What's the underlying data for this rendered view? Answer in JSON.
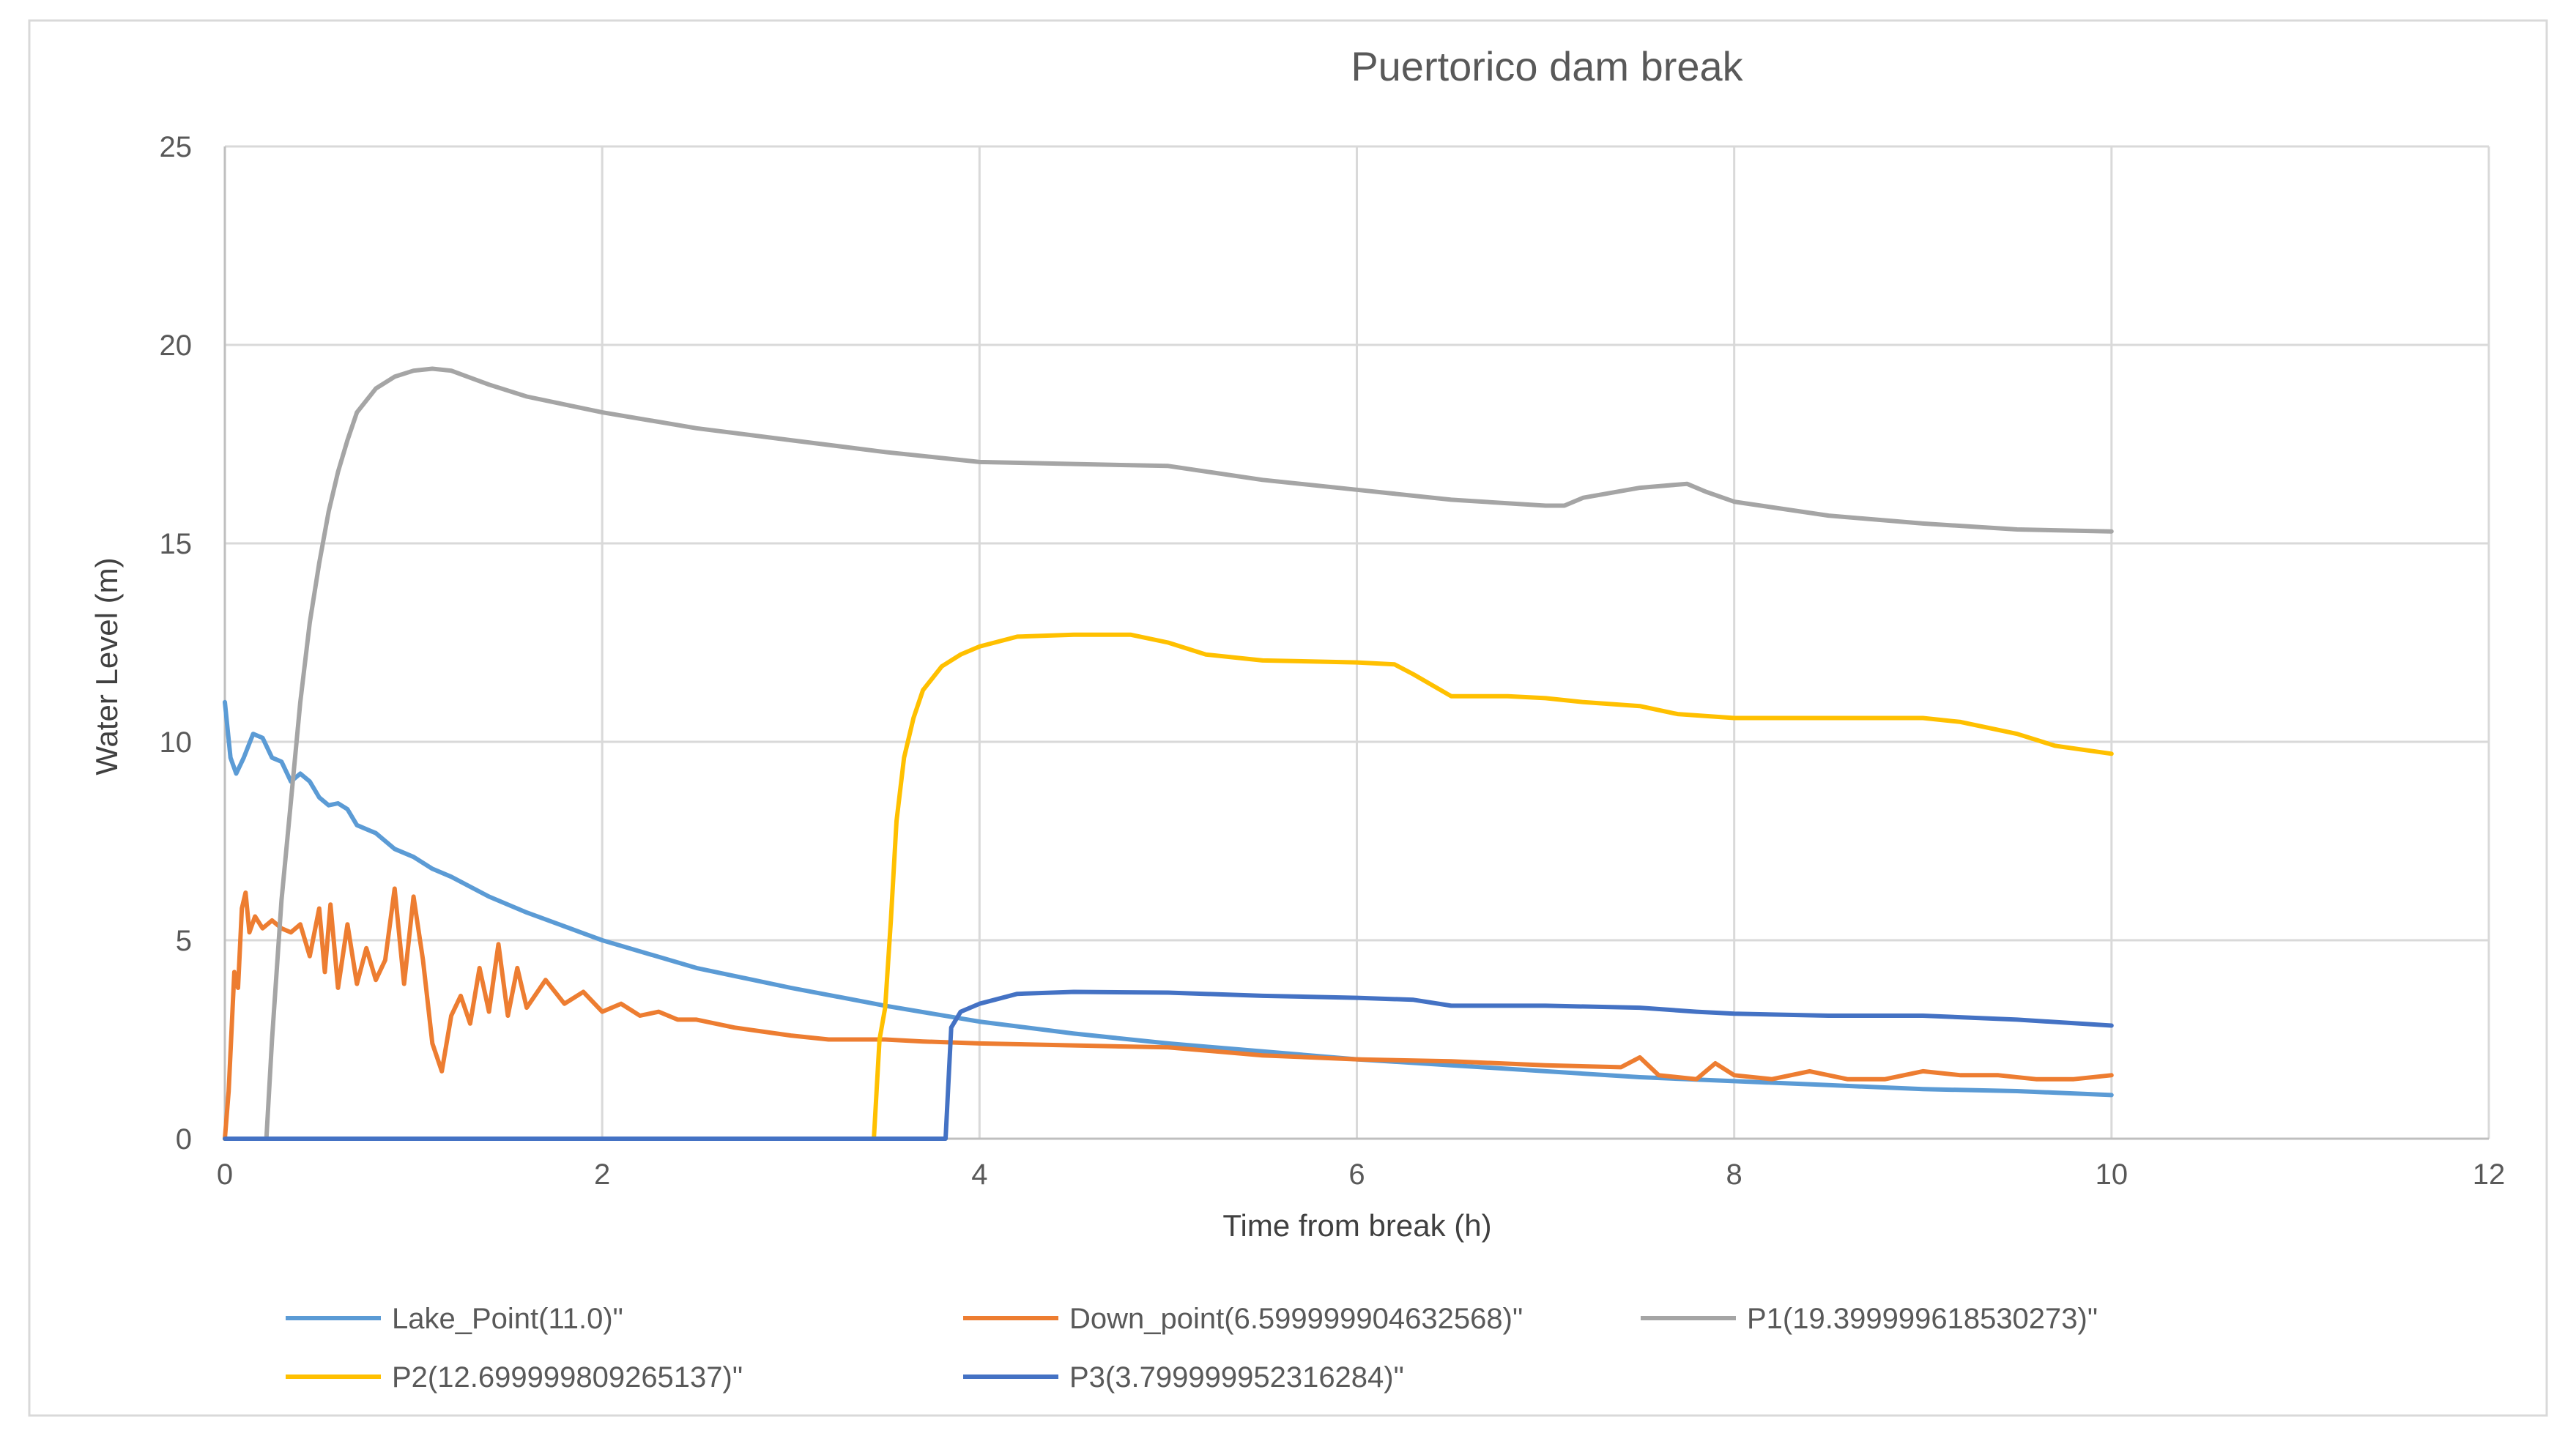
{
  "chart_data": {
    "type": "line",
    "title": "Puertorico dam break",
    "xlabel": "Time from break (h)",
    "ylabel": "Water Level (m)",
    "xlim": [
      0,
      12
    ],
    "ylim": [
      0,
      25
    ],
    "x_ticks": [
      "0",
      "2",
      "4",
      "6",
      "8",
      "10",
      "12"
    ],
    "y_ticks": [
      "0",
      "5",
      "10",
      "15",
      "20",
      "25"
    ],
    "grid": true,
    "legend_position": "bottom",
    "series": [
      {
        "name": "Lake_Point(11.0)\"",
        "color": "#5B9BD5",
        "points": [
          [
            0,
            11.0
          ],
          [
            0.03,
            9.6
          ],
          [
            0.06,
            9.2
          ],
          [
            0.1,
            9.6
          ],
          [
            0.15,
            10.2
          ],
          [
            0.2,
            10.1
          ],
          [
            0.25,
            9.6
          ],
          [
            0.3,
            9.5
          ],
          [
            0.35,
            9.0
          ],
          [
            0.4,
            9.2
          ],
          [
            0.45,
            9.0
          ],
          [
            0.5,
            8.6
          ],
          [
            0.55,
            8.4
          ],
          [
            0.6,
            8.45
          ],
          [
            0.65,
            8.3
          ],
          [
            0.7,
            7.9
          ],
          [
            0.8,
            7.7
          ],
          [
            0.9,
            7.3
          ],
          [
            1.0,
            7.1
          ],
          [
            1.1,
            6.8
          ],
          [
            1.2,
            6.6
          ],
          [
            1.4,
            6.1
          ],
          [
            1.6,
            5.7
          ],
          [
            1.8,
            5.35
          ],
          [
            2.0,
            5.0
          ],
          [
            2.5,
            4.3
          ],
          [
            3.0,
            3.8
          ],
          [
            3.5,
            3.35
          ],
          [
            4.0,
            2.95
          ],
          [
            4.5,
            2.65
          ],
          [
            5.0,
            2.4
          ],
          [
            5.5,
            2.2
          ],
          [
            6.0,
            2.0
          ],
          [
            6.5,
            1.85
          ],
          [
            7.0,
            1.7
          ],
          [
            7.5,
            1.55
          ],
          [
            8.0,
            1.45
          ],
          [
            8.5,
            1.35
          ],
          [
            9.0,
            1.25
          ],
          [
            9.5,
            1.2
          ],
          [
            10.0,
            1.1
          ]
        ]
      },
      {
        "name": "Down_point(6.599999904632568)\"",
        "color": "#ED7D31",
        "points": [
          [
            0,
            0
          ],
          [
            0.02,
            1.2
          ],
          [
            0.05,
            4.2
          ],
          [
            0.07,
            3.8
          ],
          [
            0.09,
            5.8
          ],
          [
            0.11,
            6.2
          ],
          [
            0.13,
            5.2
          ],
          [
            0.16,
            5.6
          ],
          [
            0.2,
            5.3
          ],
          [
            0.25,
            5.5
          ],
          [
            0.3,
            5.3
          ],
          [
            0.35,
            5.2
          ],
          [
            0.4,
            5.4
          ],
          [
            0.45,
            4.6
          ],
          [
            0.5,
            5.8
          ],
          [
            0.53,
            4.2
          ],
          [
            0.56,
            5.9
          ],
          [
            0.6,
            3.8
          ],
          [
            0.65,
            5.4
          ],
          [
            0.7,
            3.9
          ],
          [
            0.75,
            4.8
          ],
          [
            0.8,
            4.0
          ],
          [
            0.85,
            4.5
          ],
          [
            0.9,
            6.3
          ],
          [
            0.95,
            3.9
          ],
          [
            1.0,
            6.1
          ],
          [
            1.05,
            4.5
          ],
          [
            1.1,
            2.4
          ],
          [
            1.15,
            1.7
          ],
          [
            1.2,
            3.1
          ],
          [
            1.25,
            3.6
          ],
          [
            1.3,
            2.9
          ],
          [
            1.35,
            4.3
          ],
          [
            1.4,
            3.2
          ],
          [
            1.45,
            4.9
          ],
          [
            1.5,
            3.1
          ],
          [
            1.55,
            4.3
          ],
          [
            1.6,
            3.3
          ],
          [
            1.7,
            4.0
          ],
          [
            1.8,
            3.4
          ],
          [
            1.9,
            3.7
          ],
          [
            2.0,
            3.2
          ],
          [
            2.1,
            3.4
          ],
          [
            2.2,
            3.1
          ],
          [
            2.3,
            3.2
          ],
          [
            2.4,
            3.0
          ],
          [
            2.5,
            3.0
          ],
          [
            2.7,
            2.8
          ],
          [
            3.0,
            2.6
          ],
          [
            3.2,
            2.5
          ],
          [
            3.5,
            2.5
          ],
          [
            3.7,
            2.45
          ],
          [
            4.0,
            2.4
          ],
          [
            4.5,
            2.35
          ],
          [
            5.0,
            2.3
          ],
          [
            5.5,
            2.1
          ],
          [
            6.0,
            2.0
          ],
          [
            6.5,
            1.95
          ],
          [
            7.0,
            1.85
          ],
          [
            7.4,
            1.8
          ],
          [
            7.5,
            2.05
          ],
          [
            7.6,
            1.6
          ],
          [
            7.8,
            1.5
          ],
          [
            7.9,
            1.9
          ],
          [
            8.0,
            1.6
          ],
          [
            8.2,
            1.5
          ],
          [
            8.4,
            1.7
          ],
          [
            8.6,
            1.5
          ],
          [
            8.8,
            1.5
          ],
          [
            9.0,
            1.7
          ],
          [
            9.2,
            1.6
          ],
          [
            9.4,
            1.6
          ],
          [
            9.6,
            1.5
          ],
          [
            9.8,
            1.5
          ],
          [
            10.0,
            1.6
          ]
        ]
      },
      {
        "name": "P1(19.399999618530273)\"",
        "color": "#A5A5A5",
        "points": [
          [
            0.22,
            0
          ],
          [
            0.25,
            2.5
          ],
          [
            0.3,
            6.0
          ],
          [
            0.35,
            8.5
          ],
          [
            0.4,
            11.0
          ],
          [
            0.45,
            13.0
          ],
          [
            0.5,
            14.5
          ],
          [
            0.55,
            15.8
          ],
          [
            0.6,
            16.8
          ],
          [
            0.65,
            17.6
          ],
          [
            0.7,
            18.3
          ],
          [
            0.8,
            18.9
          ],
          [
            0.9,
            19.2
          ],
          [
            1.0,
            19.35
          ],
          [
            1.1,
            19.4
          ],
          [
            1.2,
            19.35
          ],
          [
            1.4,
            19.0
          ],
          [
            1.6,
            18.7
          ],
          [
            1.8,
            18.5
          ],
          [
            2.0,
            18.3
          ],
          [
            2.5,
            17.9
          ],
          [
            3.0,
            17.6
          ],
          [
            3.5,
            17.3
          ],
          [
            4.0,
            17.05
          ],
          [
            4.5,
            17.0
          ],
          [
            5.0,
            16.95
          ],
          [
            5.5,
            16.6
          ],
          [
            6.0,
            16.35
          ],
          [
            6.5,
            16.1
          ],
          [
            7.0,
            15.95
          ],
          [
            7.1,
            15.95
          ],
          [
            7.2,
            16.15
          ],
          [
            7.5,
            16.4
          ],
          [
            7.75,
            16.5
          ],
          [
            7.85,
            16.3
          ],
          [
            8.0,
            16.05
          ],
          [
            8.5,
            15.7
          ],
          [
            9.0,
            15.5
          ],
          [
            9.5,
            15.35
          ],
          [
            10.0,
            15.3
          ]
        ]
      },
      {
        "name": "P2(12.699999809265137)\"",
        "color": "#FFC000",
        "points": [
          [
            0,
            0
          ],
          [
            3.44,
            0
          ],
          [
            3.47,
            2.5
          ],
          [
            3.5,
            3.3
          ],
          [
            3.53,
            5.5
          ],
          [
            3.56,
            8.0
          ],
          [
            3.6,
            9.6
          ],
          [
            3.65,
            10.6
          ],
          [
            3.7,
            11.3
          ],
          [
            3.8,
            11.9
          ],
          [
            3.9,
            12.2
          ],
          [
            4.0,
            12.4
          ],
          [
            4.2,
            12.65
          ],
          [
            4.5,
            12.7
          ],
          [
            4.8,
            12.7
          ],
          [
            5.0,
            12.5
          ],
          [
            5.2,
            12.2
          ],
          [
            5.5,
            12.05
          ],
          [
            6.0,
            12.0
          ],
          [
            6.2,
            11.95
          ],
          [
            6.3,
            11.7
          ],
          [
            6.5,
            11.15
          ],
          [
            6.8,
            11.15
          ],
          [
            7.0,
            11.1
          ],
          [
            7.2,
            11.0
          ],
          [
            7.5,
            10.9
          ],
          [
            7.7,
            10.7
          ],
          [
            8.0,
            10.6
          ],
          [
            8.5,
            10.6
          ],
          [
            9.0,
            10.6
          ],
          [
            9.2,
            10.5
          ],
          [
            9.5,
            10.2
          ],
          [
            9.7,
            9.9
          ],
          [
            10.0,
            9.7
          ]
        ]
      },
      {
        "name": "P3(3.799999952316284)\"",
        "color": "#4472C4",
        "points": [
          [
            0,
            0
          ],
          [
            3.82,
            0
          ],
          [
            3.85,
            2.8
          ],
          [
            3.9,
            3.2
          ],
          [
            4.0,
            3.4
          ],
          [
            4.2,
            3.65
          ],
          [
            4.5,
            3.7
          ],
          [
            5.0,
            3.68
          ],
          [
            5.5,
            3.6
          ],
          [
            6.0,
            3.55
          ],
          [
            6.3,
            3.5
          ],
          [
            6.5,
            3.35
          ],
          [
            7.0,
            3.35
          ],
          [
            7.5,
            3.3
          ],
          [
            7.8,
            3.2
          ],
          [
            8.0,
            3.15
          ],
          [
            8.5,
            3.1
          ],
          [
            9.0,
            3.1
          ],
          [
            9.5,
            3.0
          ],
          [
            10.0,
            2.85
          ]
        ]
      }
    ]
  }
}
